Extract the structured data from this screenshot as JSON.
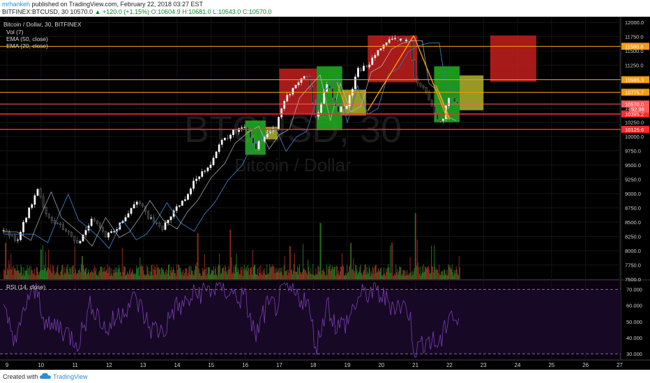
{
  "header": {
    "author": "mrhankeh",
    "published_text": "published on TradingView.com, February 22, 2018 03:27 EST",
    "symbol": "BITFINEX:BTCUSD, 30",
    "last": "10570.0",
    "change": "+120.0 (+1.15%)",
    "ohlc": {
      "o_label": "O:",
      "o": "10604.9",
      "h_label": "H:",
      "h": "10681.0",
      "l_label": "L:",
      "l": "10543.0",
      "c_label": "C:",
      "c": "10570.0"
    }
  },
  "legend": {
    "title": "Bitcoin / Dollar, 30, BITFINEX",
    "items": [
      "Vol (7)",
      "EMA (50, close)",
      "EMA (20, close)"
    ]
  },
  "watermark": {
    "big": "BTCUSD, 30",
    "small": "Bitcoin / Dollar"
  },
  "rsi_label": "RSI (14, close)",
  "footer": {
    "created": "Created with",
    "brand": "TradingView"
  },
  "colors": {
    "background": "#000000",
    "up": "#2ca02c",
    "down": "#c0392b",
    "rsi": "#7b3fb5",
    "ema50": "#3a6fb0",
    "ema20": "#c9cad6",
    "orange_line": "#f39c12",
    "red_line": "#ff2a2a"
  },
  "chart_data": {
    "type": "candlestick",
    "x_ticks": [
      "9",
      "10",
      "11",
      "12",
      "13",
      "14",
      "15",
      "16",
      "17",
      "18",
      "19",
      "20",
      "21",
      "22",
      "23",
      "24",
      "25",
      "26",
      "27"
    ],
    "y_ticks": [
      "12000.0",
      "11750.0",
      "11500.0",
      "11250.0",
      "11000.0",
      "10750.0",
      "10500.0",
      "10250.0",
      "10000.0",
      "9750.0",
      "9500.0",
      "9250.0",
      "9000.0",
      "8750.0",
      "8500.0",
      "8250.0",
      "8000.0",
      "7750.0",
      "7500.0"
    ],
    "ylim": [
      7500,
      12050
    ],
    "price_path_days": [
      8.9,
      9.3,
      9.6,
      9.9,
      10.2,
      10.5,
      10.8,
      11.1,
      11.5,
      11.9,
      12.2,
      12.5,
      12.8,
      13.2,
      13.6,
      13.9,
      14.2,
      14.6,
      15.0,
      15.3,
      15.7,
      16.0,
      16.3,
      16.6,
      16.9,
      17.2,
      17.5,
      17.8,
      18.1,
      18.4,
      18.7,
      19.0,
      19.3,
      19.6,
      19.9,
      20.2,
      20.5,
      20.8,
      21.0,
      21.3,
      21.6,
      21.8,
      22.0,
      22.2
    ],
    "price_path_values": [
      8350,
      8200,
      8650,
      9050,
      8600,
      8450,
      8300,
      8100,
      8600,
      8250,
      8350,
      8600,
      8900,
      8550,
      8400,
      8700,
      8900,
      9300,
      9550,
      9900,
      10100,
      10200,
      9800,
      10050,
      10150,
      10700,
      10900,
      11100,
      10300,
      10950,
      10450,
      10550,
      11150,
      11250,
      11550,
      11650,
      11700,
      11700,
      10950,
      10800,
      10350,
      10300,
      10700,
      10600
    ],
    "levels": [
      {
        "label": "11580.8",
        "value": 11580.8,
        "color": "#f39c12"
      },
      {
        "label": "10995.3",
        "value": 10995.3,
        "color": "#f39c12"
      },
      {
        "label": "10775.7",
        "value": 10775.7,
        "color": "#f39c12"
      },
      {
        "label": "10570.0",
        "value": 10570.0,
        "color": "#ff5a5a"
      },
      {
        "label": "10395.2",
        "value": 10395.2,
        "color": "#ff2a2a"
      },
      {
        "label": "10125.6",
        "value": 10125.6,
        "color": "#ff2a2a"
      }
    ],
    "current_tag": "92.98",
    "zones": [
      {
        "x0": 16.0,
        "x1": 16.6,
        "y0": 9680,
        "y1": 10280,
        "color": "#22b022"
      },
      {
        "x0": 16.6,
        "x1": 16.95,
        "y0": 9950,
        "y1": 10170,
        "color": "#b3b32a"
      },
      {
        "x0": 17.0,
        "x1": 18.1,
        "y0": 10400,
        "y1": 11190,
        "color": "#c41e1e"
      },
      {
        "x0": 18.1,
        "x1": 18.85,
        "y0": 10110,
        "y1": 11230,
        "color": "#22b022"
      },
      {
        "x0": 18.85,
        "x1": 19.55,
        "y0": 10370,
        "y1": 10820,
        "color": "#b3b32a"
      },
      {
        "x0": 19.6,
        "x1": 21.05,
        "y0": 10950,
        "y1": 11770,
        "color": "#c41e1e"
      },
      {
        "x0": 21.55,
        "x1": 22.3,
        "y0": 10250,
        "y1": 11230,
        "color": "#22b022"
      },
      {
        "x0": 22.3,
        "x1": 23.0,
        "y0": 10460,
        "y1": 11070,
        "color": "#b3b32a"
      },
      {
        "x0": 23.2,
        "x1": 24.55,
        "y0": 10960,
        "y1": 11770,
        "color": "#c41e1e"
      }
    ],
    "trend_lines": [
      {
        "x0": 19.6,
        "y0": 10450,
        "x1": 20.95,
        "y1": 11770
      },
      {
        "x0": 20.95,
        "y0": 11770,
        "x1": 21.95,
        "y1": 10300
      },
      {
        "x0": 18.7,
        "y0": 10950,
        "x1": 18.95,
        "y1": 10500
      },
      {
        "x0": 21.6,
        "y0": 10900,
        "x1": 22.0,
        "y1": 10300
      }
    ],
    "rsi": {
      "ticks": [
        "70.000",
        "60.000",
        "50.000",
        "40.000",
        "30.000"
      ],
      "ylim": [
        27,
        75
      ],
      "band": [
        30,
        70
      ],
      "days": [
        8.9,
        9.3,
        9.6,
        9.9,
        10.2,
        10.5,
        10.8,
        11.1,
        11.5,
        11.9,
        12.2,
        12.5,
        12.8,
        13.2,
        13.6,
        13.9,
        14.2,
        14.6,
        15.0,
        15.3,
        15.7,
        16.0,
        16.3,
        16.6,
        16.9,
        17.2,
        17.5,
        17.8,
        18.1,
        18.4,
        18.7,
        19.0,
        19.3,
        19.6,
        19.9,
        20.2,
        20.5,
        20.8,
        21.0,
        21.3,
        21.6,
        21.8,
        22.0,
        22.2
      ],
      "values": [
        55,
        38,
        65,
        68,
        45,
        48,
        42,
        38,
        62,
        44,
        52,
        60,
        64,
        46,
        44,
        58,
        60,
        68,
        70,
        72,
        66,
        64,
        40,
        58,
        60,
        70,
        66,
        64,
        34,
        62,
        46,
        50,
        64,
        68,
        68,
        62,
        60,
        58,
        30,
        40,
        36,
        38,
        58,
        50
      ]
    },
    "volume_spikes": [
      {
        "day": 8.95,
        "v": 0.55
      },
      {
        "day": 10.0,
        "v": 0.45
      },
      {
        "day": 11.2,
        "v": 0.35
      },
      {
        "day": 14.6,
        "v": 0.7
      },
      {
        "day": 15.55,
        "v": 0.75
      },
      {
        "day": 17.3,
        "v": 0.5
      },
      {
        "day": 18.2,
        "v": 0.85
      },
      {
        "day": 19.1,
        "v": 0.55
      },
      {
        "day": 20.3,
        "v": 0.55
      },
      {
        "day": 21.0,
        "v": 1.0
      },
      {
        "day": 21.05,
        "v": 0.6
      }
    ]
  }
}
